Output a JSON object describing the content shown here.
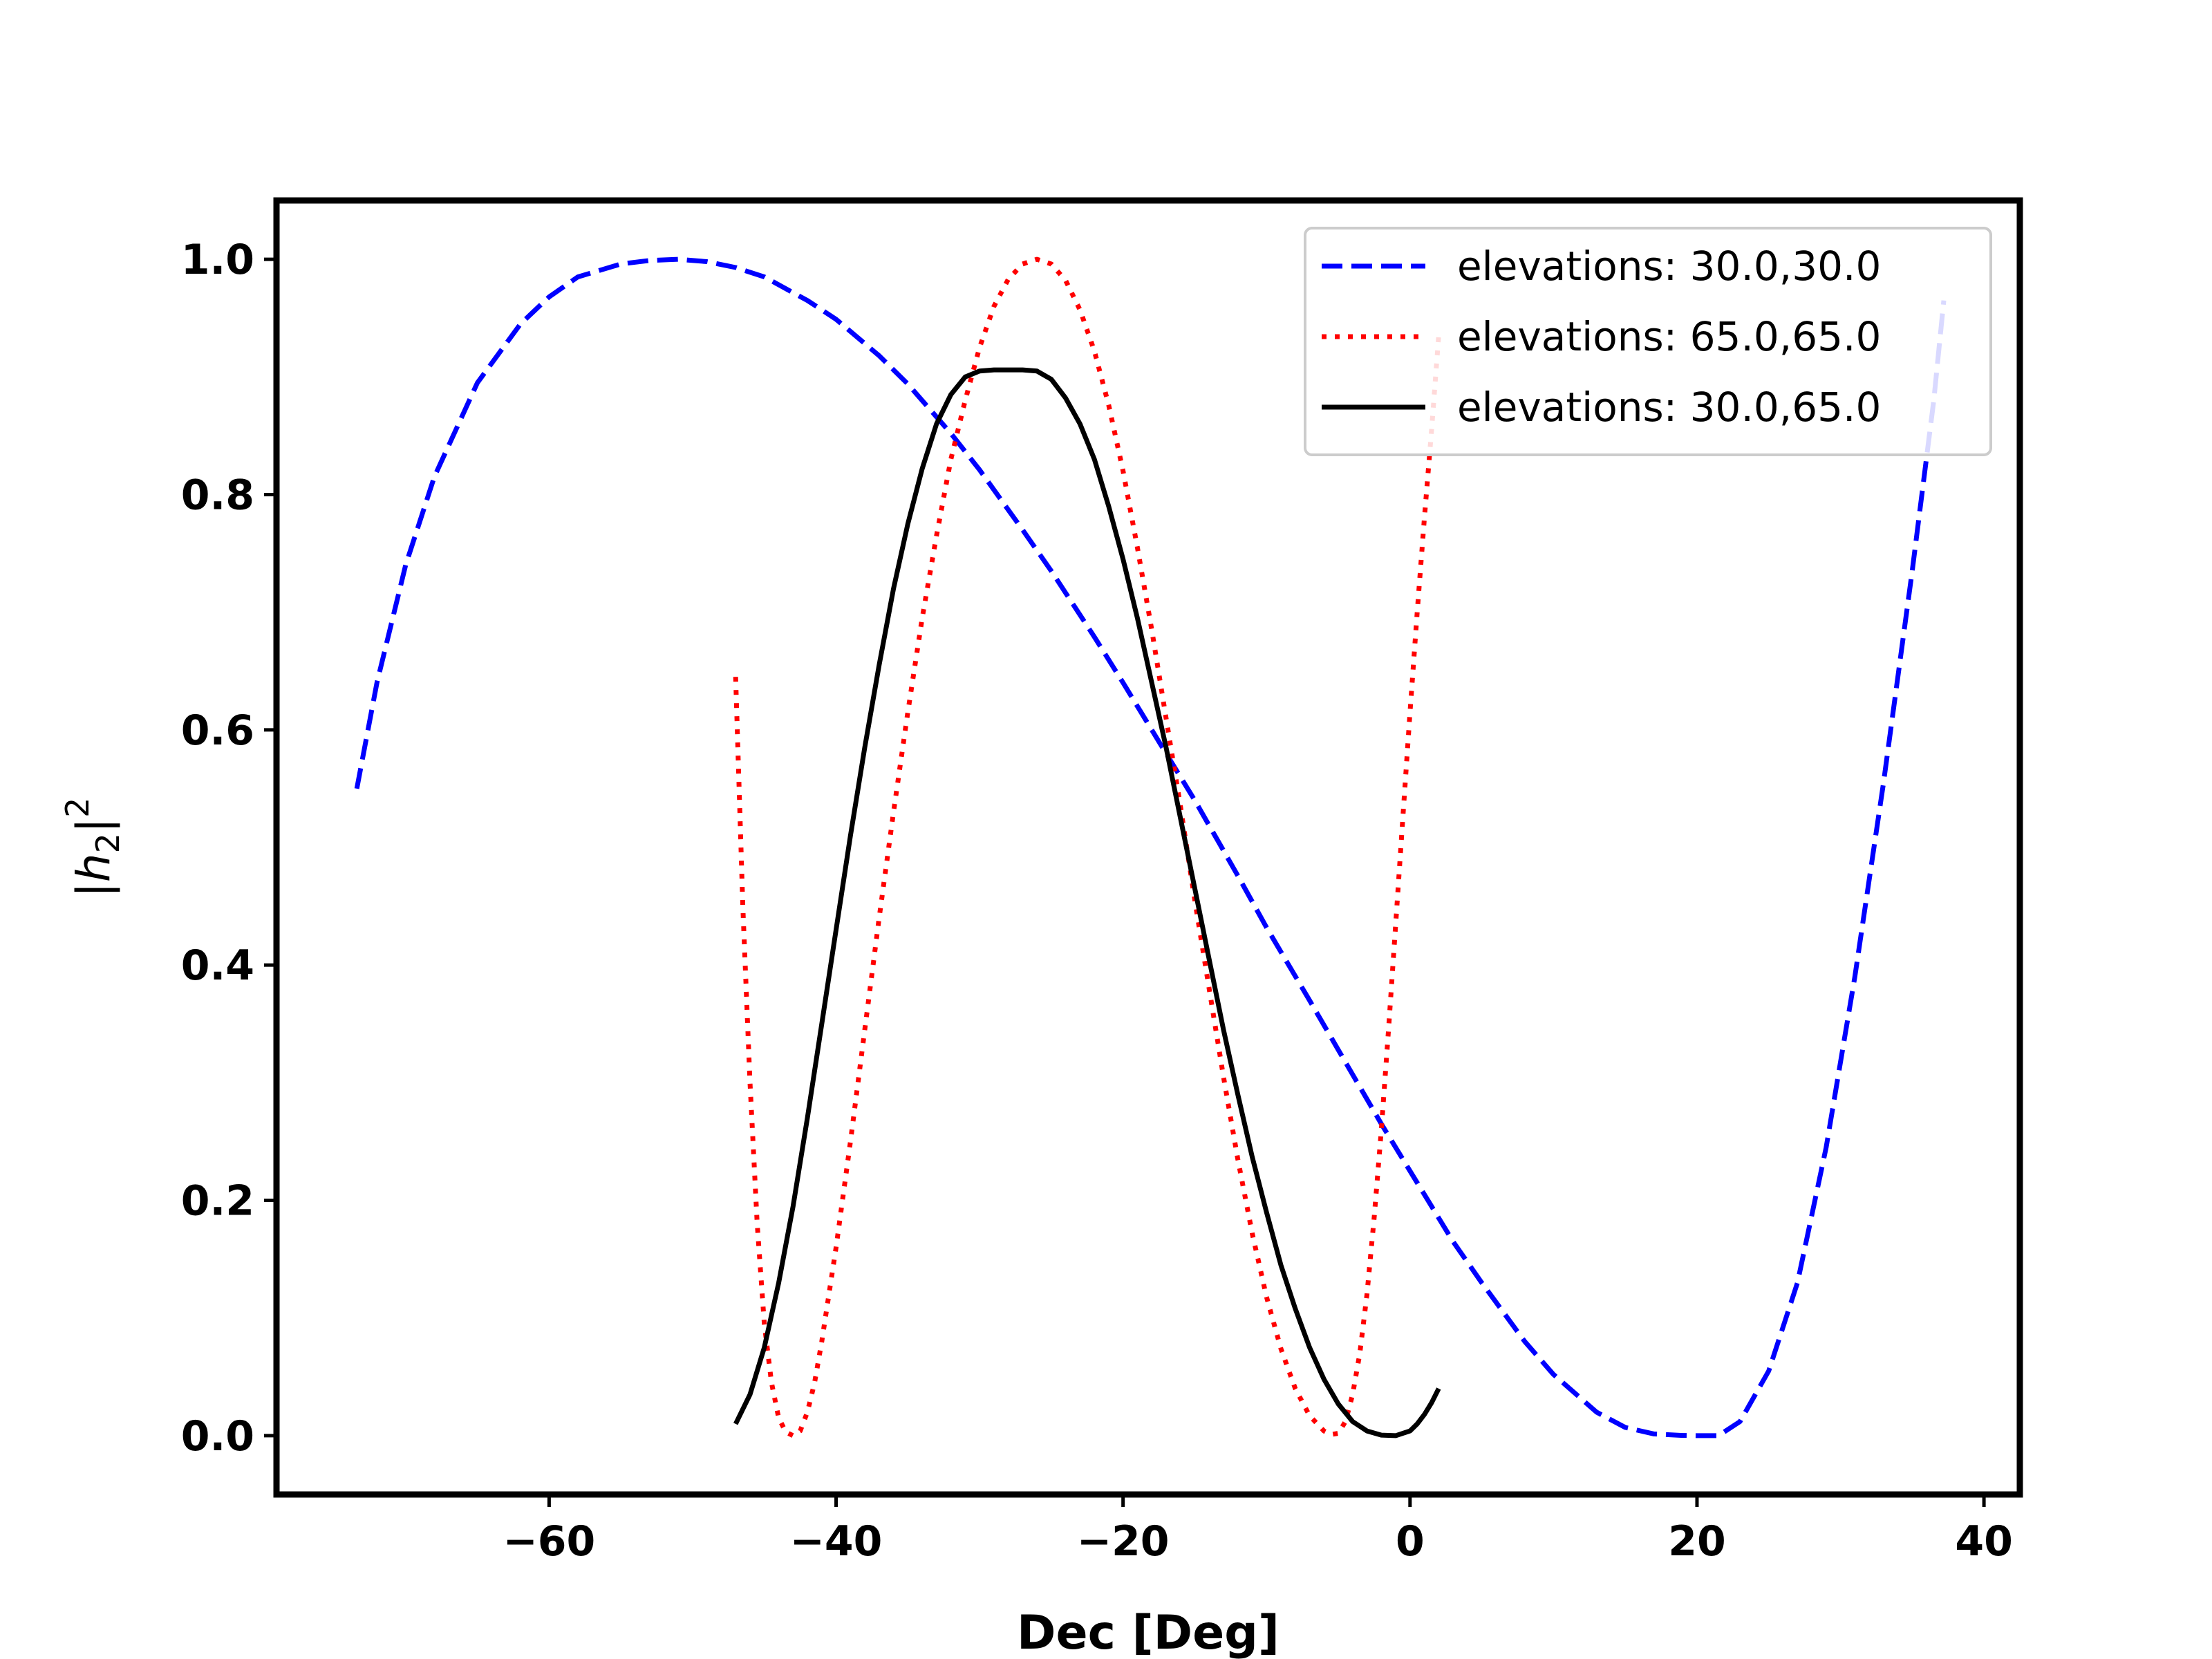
{
  "chart_data": {
    "type": "line",
    "title": "",
    "xlabel": "Dec [Deg]",
    "ylabel": "|h₂|²",
    "ylabel_parts": {
      "bar_left": "|",
      "h": "h",
      "sub": "2",
      "bar_right": "|",
      "sup": "2"
    },
    "xlim": [
      -79,
      42.5
    ],
    "ylim": [
      -0.05,
      1.05
    ],
    "xticks": [
      -60,
      -40,
      -20,
      0,
      20,
      40
    ],
    "xtick_labels": [
      "−60",
      "−40",
      "−20",
      "0",
      "20",
      "40"
    ],
    "yticks": [
      0.0,
      0.2,
      0.4,
      0.6,
      0.8,
      1.0
    ],
    "ytick_labels": [
      "0.0",
      "0.2",
      "0.4",
      "0.6",
      "0.8",
      "1.0"
    ],
    "grid": false,
    "legend_position": "top-right",
    "series": [
      {
        "name": "elevations: 30.0,30.0",
        "color": "#0000ff",
        "style": "dashed",
        "x": [
          -73.4,
          -72,
          -70,
          -68,
          -65,
          -62,
          -60,
          -58,
          -55,
          -53,
          -51,
          -49,
          -47,
          -45,
          -42,
          -40,
          -37,
          -35,
          -32,
          -30,
          -27,
          -25,
          -22,
          -20,
          -17,
          -15,
          -12,
          -10,
          -7,
          -5,
          -2,
          0,
          3,
          5,
          8,
          10,
          13,
          15,
          17,
          19,
          20,
          21.5,
          23,
          25,
          27,
          29,
          31,
          33,
          35,
          36.5,
          37.2
        ],
        "y": [
          0.55,
          0.64,
          0.74,
          0.815,
          0.895,
          0.945,
          0.968,
          0.985,
          0.996,
          0.999,
          1.0,
          0.998,
          0.993,
          0.985,
          0.965,
          0.949,
          0.918,
          0.894,
          0.852,
          0.821,
          0.77,
          0.735,
          0.679,
          0.64,
          0.58,
          0.54,
          0.476,
          0.432,
          0.37,
          0.328,
          0.265,
          0.225,
          0.165,
          0.13,
          0.08,
          0.052,
          0.02,
          0.007,
          0.0015,
          0.0002,
          0.0,
          0.0,
          0.012,
          0.055,
          0.13,
          0.245,
          0.39,
          0.555,
          0.735,
          0.88,
          0.965
        ]
      },
      {
        "name": "elevations: 65.0,65.0",
        "color": "#ff0000",
        "style": "dotted",
        "x": [
          -47,
          -46.5,
          -46,
          -45.5,
          -45,
          -44.5,
          -44,
          -43.5,
          -43,
          -42.5,
          -42,
          -41.5,
          -41,
          -40,
          -39,
          -38,
          -37,
          -36,
          -35,
          -34,
          -33,
          -32,
          -31,
          -30,
          -29,
          -28,
          -27,
          -26,
          -25,
          -24,
          -23,
          -22,
          -21,
          -20,
          -19,
          -18,
          -17,
          -16,
          -15,
          -14,
          -13,
          -12,
          -11,
          -10,
          -9,
          -8,
          -7,
          -6,
          -5.5,
          -5,
          -4.5,
          -4,
          -3.5,
          -3,
          -2.5,
          -2,
          -1.5,
          -1,
          -0.5,
          0,
          0.5,
          1,
          1.5,
          2
        ],
        "y": [
          0.645,
          0.45,
          0.3,
          0.18,
          0.095,
          0.045,
          0.015,
          0.003,
          0.0,
          0.004,
          0.02,
          0.045,
          0.08,
          0.16,
          0.25,
          0.345,
          0.44,
          0.53,
          0.615,
          0.695,
          0.765,
          0.83,
          0.88,
          0.925,
          0.96,
          0.983,
          0.996,
          1.0,
          0.996,
          0.982,
          0.957,
          0.922,
          0.876,
          0.82,
          0.755,
          0.685,
          0.61,
          0.535,
          0.455,
          0.38,
          0.305,
          0.235,
          0.172,
          0.118,
          0.074,
          0.04,
          0.017,
          0.004,
          0.001,
          0.002,
          0.012,
          0.035,
          0.07,
          0.12,
          0.185,
          0.26,
          0.345,
          0.435,
          0.525,
          0.615,
          0.7,
          0.78,
          0.855,
          0.935
        ]
      },
      {
        "name": "elevations: 30.0,65.0",
        "color": "#000000",
        "style": "solid",
        "x": [
          -47,
          -46,
          -45,
          -44,
          -43,
          -42,
          -41,
          -40,
          -39,
          -38,
          -37,
          -36,
          -35,
          -34,
          -33,
          -32,
          -31,
          -30,
          -29,
          -28,
          -27,
          -26,
          -25,
          -24,
          -23,
          -22,
          -21,
          -20,
          -19,
          -18,
          -17,
          -16,
          -15,
          -14,
          -13,
          -12,
          -11,
          -10,
          -9,
          -8,
          -7,
          -6,
          -5,
          -4,
          -3,
          -2,
          -1,
          0,
          0.5,
          1,
          1.5,
          2
        ],
        "y": [
          0.01,
          0.035,
          0.075,
          0.13,
          0.195,
          0.27,
          0.35,
          0.43,
          0.51,
          0.585,
          0.655,
          0.72,
          0.775,
          0.822,
          0.86,
          0.885,
          0.9,
          0.905,
          0.906,
          0.906,
          0.906,
          0.905,
          0.898,
          0.882,
          0.86,
          0.83,
          0.79,
          0.745,
          0.695,
          0.64,
          0.585,
          0.525,
          0.465,
          0.405,
          0.345,
          0.29,
          0.237,
          0.19,
          0.145,
          0.108,
          0.075,
          0.048,
          0.027,
          0.012,
          0.004,
          0.0005,
          0.0,
          0.004,
          0.01,
          0.018,
          0.028,
          0.04
        ]
      }
    ]
  }
}
